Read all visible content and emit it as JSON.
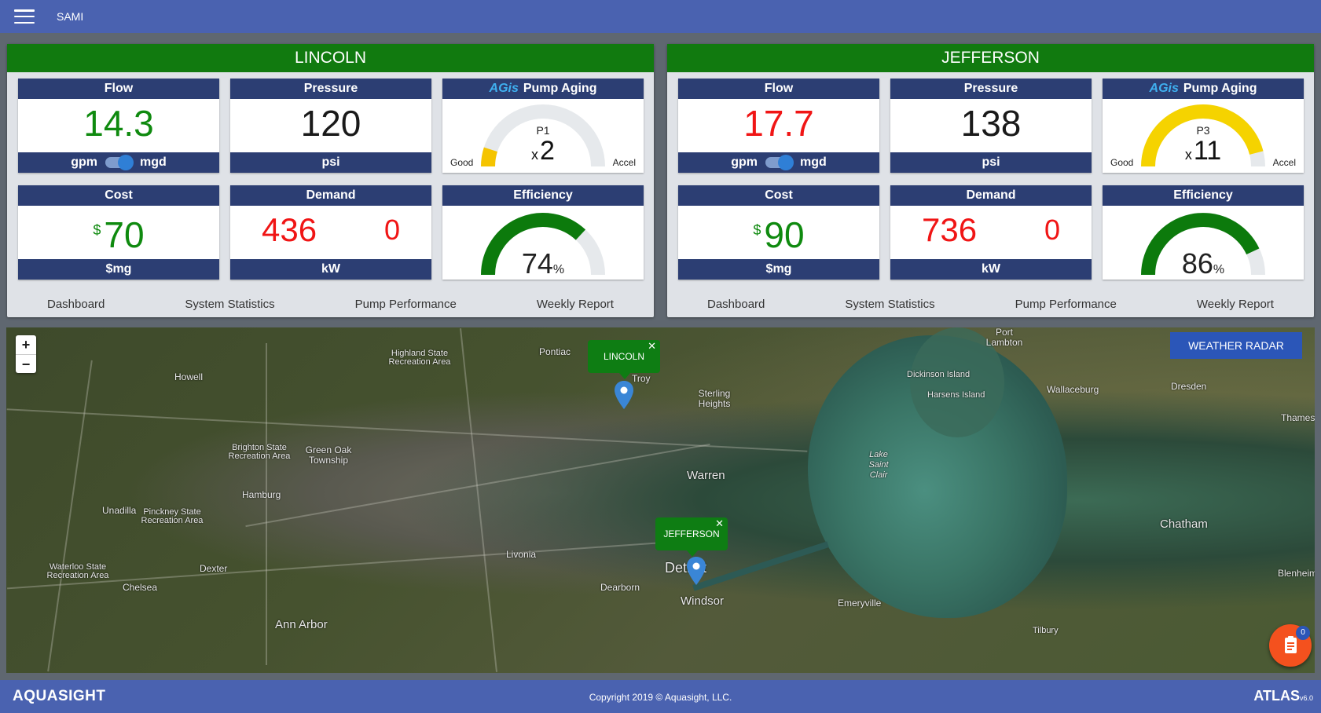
{
  "app": {
    "title": "SAMI"
  },
  "stations": [
    {
      "name": "LINCOLN",
      "flow": {
        "label": "Flow",
        "value": "14.3",
        "unit_left": "gpm",
        "unit_right": "mgd"
      },
      "pressure": {
        "label": "Pressure",
        "value": "120",
        "unit": "psi"
      },
      "aging": {
        "logo": "AGis",
        "label": "Pump Aging",
        "pump": "P1",
        "mult_prefix": "x",
        "mult": "2",
        "good": "Good",
        "accel": "Accel",
        "level": 0.1,
        "color": "#f5c400"
      },
      "cost": {
        "label": "Cost",
        "symbol": "$",
        "value": "70",
        "unit": "$mg"
      },
      "demand": {
        "label": "Demand",
        "value": "436",
        "secondary": "0",
        "unit": "kW"
      },
      "efficiency": {
        "label": "Efficiency",
        "value": "74",
        "pct": "%",
        "level": 0.74
      },
      "links": [
        "Dashboard",
        "System Statistics",
        "Pump Performance",
        "Weekly Report"
      ]
    },
    {
      "name": "JEFFERSON",
      "flow": {
        "label": "Flow",
        "value": "17.7",
        "unit_left": "gpm",
        "unit_right": "mgd"
      },
      "pressure": {
        "label": "Pressure",
        "value": "138",
        "unit": "psi"
      },
      "aging": {
        "logo": "AGis",
        "label": "Pump Aging",
        "pump": "P3",
        "mult_prefix": "x",
        "mult": "11",
        "good": "Good",
        "accel": "Accel",
        "level": 0.92,
        "color": "#f5d300"
      },
      "cost": {
        "label": "Cost",
        "symbol": "$",
        "value": "90",
        "unit": "$mg"
      },
      "demand": {
        "label": "Demand",
        "value": "736",
        "secondary": "0",
        "unit": "kW"
      },
      "efficiency": {
        "label": "Efficiency",
        "value": "86",
        "pct": "%",
        "level": 0.86
      },
      "links": [
        "Dashboard",
        "System Statistics",
        "Pump Performance",
        "Weekly Report"
      ]
    }
  ],
  "colors": {
    "flow_lincoln": "#0f8a0f",
    "flow_jefferson": "#f01515",
    "efficiency_gauge": "#0c7a0c",
    "gauge_track": "#e6e9ec"
  },
  "map": {
    "zoom_in": "+",
    "zoom_out": "−",
    "weather_button": "WEATHER RADAR",
    "markers": [
      {
        "name": "LINCOLN",
        "close": "✕"
      },
      {
        "name": "JEFFERSON",
        "close": "✕"
      }
    ],
    "places": [
      "Pontiac",
      "Highland State Recreation Area",
      "Howell",
      "Troy",
      "Sterling Heights",
      "Port Lambton",
      "Dickinson Island",
      "Harsens Island",
      "Wallaceburg",
      "Dresden",
      "Thames",
      "Brighton State Recreation Area",
      "Green Oak Township",
      "Lake Saint Clair",
      "Warren",
      "Hamburg",
      "Unadilla",
      "Pinckney State Recreation Area",
      "Chatham",
      "Livonia",
      "Detroit",
      "Dearborn",
      "Windsor",
      "Waterloo State Recreation Area",
      "Dexter",
      "Chelsea",
      "Ann Arbor",
      "Emeryville",
      "Tilbury",
      "Blenheim"
    ],
    "fab_count": "0"
  },
  "footer": {
    "brand": "AQUASIGHT",
    "copyright": "Copyright 2019 © Aquasight, LLC.",
    "product": "ATLAS",
    "version": "v6.0"
  }
}
